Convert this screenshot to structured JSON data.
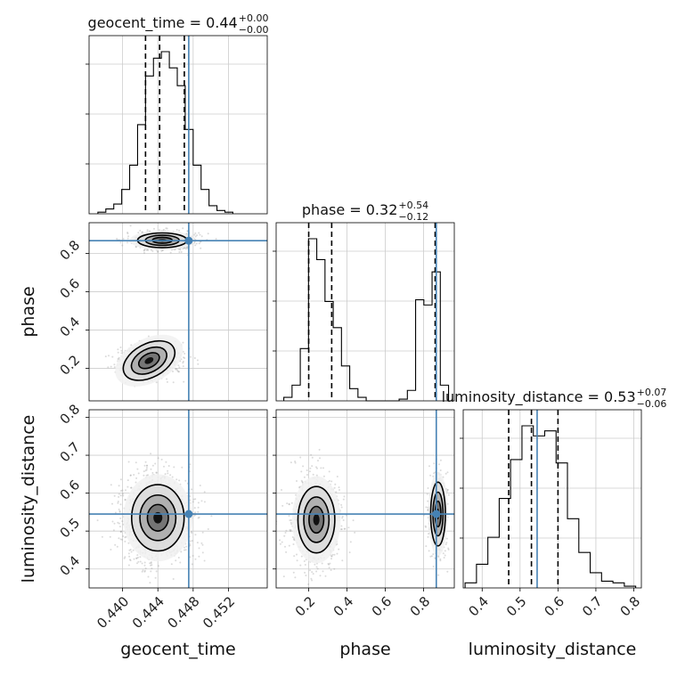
{
  "chart_data": {
    "type": "corner",
    "parameters": [
      "geocent_time",
      "phase",
      "luminosity_distance"
    ],
    "truth_color": "#4682b4",
    "grid": true,
    "axis_labels": {
      "bottom": [
        "geocent_time",
        "phase",
        "luminosity_distance"
      ],
      "left": [
        "phase",
        "luminosity_distance"
      ]
    },
    "titles": [
      {
        "param": "geocent_time",
        "text": "geocent_time = 0.44",
        "upper": "+0.00",
        "lower": "−0.00"
      },
      {
        "param": "phase",
        "text": "phase = 0.32",
        "upper": "+0.54",
        "lower": "−0.12"
      },
      {
        "param": "luminosity_distance",
        "text": "luminosity_distance = 0.53",
        "upper": "+0.07",
        "lower": "−0.06"
      }
    ],
    "ranges": {
      "geocent_time": [
        0.4362,
        0.4564
      ],
      "phase": [
        0.03,
        0.96
      ],
      "luminosity_distance": [
        0.35,
        0.82
      ]
    },
    "ticks": {
      "geocent_time": [
        "0.440",
        "0.444",
        "0.448",
        "0.452"
      ],
      "phase": [
        "0.2",
        "0.4",
        "0.6",
        "0.8"
      ],
      "luminosity_distance": [
        "0.4",
        "0.5",
        "0.6",
        "0.7",
        "0.8"
      ]
    },
    "truths": {
      "geocent_time": 0.4475,
      "phase": 0.866,
      "luminosity_distance": 0.545
    },
    "quantiles": {
      "geocent_time": [
        0.4426,
        0.4442,
        0.447
      ],
      "phase": [
        0.2,
        0.32,
        0.86
      ],
      "luminosity_distance": [
        0.47,
        0.53,
        0.6
      ]
    },
    "histograms": {
      "geocent_time": {
        "edges": [
          0.4372,
          0.4381,
          0.439,
          0.4399,
          0.4408,
          0.4417,
          0.4426,
          0.4435,
          0.4444,
          0.4453,
          0.4462,
          0.4471,
          0.448,
          0.4489,
          0.4498,
          0.4507,
          0.4516,
          0.4525
        ],
        "counts": [
          0.01,
          0.03,
          0.06,
          0.15,
          0.3,
          0.55,
          0.85,
          0.96,
          1.0,
          0.9,
          0.79,
          0.52,
          0.3,
          0.15,
          0.05,
          0.02,
          0.01
        ]
      },
      "phase": {
        "edges": [
          0.07,
          0.113,
          0.156,
          0.199,
          0.242,
          0.285,
          0.328,
          0.371,
          0.414,
          0.457,
          0.5,
          0.543,
          0.586,
          0.629,
          0.672,
          0.715,
          0.758,
          0.801,
          0.844,
          0.887,
          0.93
        ],
        "counts": [
          0.02,
          0.09,
          0.3,
          0.93,
          0.81,
          0.57,
          0.42,
          0.2,
          0.07,
          0.02,
          0.0,
          0.0,
          0.0,
          0.0,
          0.01,
          0.06,
          0.58,
          0.55,
          0.74,
          0.09
        ]
      },
      "luminosity_distance": {
        "edges": [
          0.355,
          0.385,
          0.415,
          0.445,
          0.475,
          0.505,
          0.535,
          0.565,
          0.595,
          0.625,
          0.655,
          0.685,
          0.715,
          0.745,
          0.775,
          0.805
        ],
        "counts": [
          0.03,
          0.14,
          0.3,
          0.53,
          0.76,
          0.96,
          0.9,
          0.93,
          0.74,
          0.41,
          0.21,
          0.09,
          0.04,
          0.03,
          0.01
        ]
      }
    },
    "blobs": {
      "phase_vs_geocent_time": [
        {
          "x": 0.4445,
          "y": 0.868,
          "sx": 0.0016,
          "sy": 0.022,
          "w": 0.45,
          "rot": 0
        },
        {
          "x": 0.443,
          "y": 0.24,
          "sx": 0.0018,
          "sy": 0.05,
          "w": 0.55,
          "rot": 0.7
        }
      ],
      "luminosity_distance_vs_geocent_time": [
        {
          "x": 0.444,
          "y": 0.535,
          "sx": 0.0017,
          "sy": 0.05,
          "w": 1.0,
          "rot": 0
        }
      ],
      "luminosity_distance_vs_phase": [
        {
          "x": 0.24,
          "y": 0.53,
          "sx": 0.055,
          "sy": 0.05,
          "w": 0.65,
          "rot": 0
        },
        {
          "x": 0.875,
          "y": 0.545,
          "sx": 0.022,
          "sy": 0.048,
          "w": 0.35,
          "rot": 0
        }
      ]
    }
  }
}
